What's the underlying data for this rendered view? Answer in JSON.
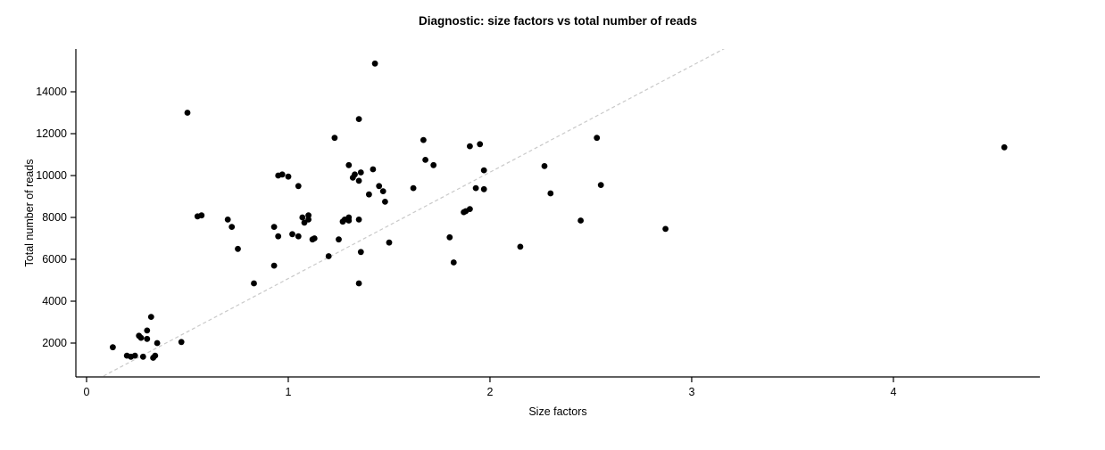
{
  "figure": {
    "background": "#ffffff"
  },
  "chart_data": {
    "type": "scatter",
    "title": "Diagnostic: size factors vs total number of reads",
    "xlabel": "Size factors",
    "ylabel": "Total number of reads",
    "xlim": [
      -0.053,
      4.726
    ],
    "ylim": [
      383,
      16043
    ],
    "x_ticks": [
      0,
      1,
      2,
      3,
      4
    ],
    "y_ticks": [
      2000,
      4000,
      6000,
      8000,
      10000,
      12000,
      14000
    ],
    "grid": false,
    "legend": "none",
    "point_color": "#000000",
    "point_radius": 3.4,
    "reference_line": {
      "intercept": 0,
      "slope": 5080,
      "style": "dashed",
      "color": "#c9c9c9"
    },
    "points": [
      [
        0.13,
        1800
      ],
      [
        0.2,
        1400
      ],
      [
        0.22,
        1350
      ],
      [
        0.24,
        1400
      ],
      [
        0.26,
        2350
      ],
      [
        0.27,
        2250
      ],
      [
        0.28,
        1350
      ],
      [
        0.3,
        2600
      ],
      [
        0.3,
        2200
      ],
      [
        0.32,
        3250
      ],
      [
        0.33,
        1300
      ],
      [
        0.34,
        1400
      ],
      [
        0.35,
        2000
      ],
      [
        0.47,
        2050
      ],
      [
        0.5,
        13000
      ],
      [
        0.55,
        8050
      ],
      [
        0.57,
        8100
      ],
      [
        0.7,
        7900
      ],
      [
        0.72,
        7550
      ],
      [
        0.75,
        6500
      ],
      [
        0.83,
        4850
      ],
      [
        0.93,
        7550
      ],
      [
        0.95,
        7100
      ],
      [
        0.93,
        5700
      ],
      [
        0.95,
        10000
      ],
      [
        0.97,
        10050
      ],
      [
        1.0,
        9950
      ],
      [
        1.02,
        7200
      ],
      [
        1.05,
        9500
      ],
      [
        1.05,
        7100
      ],
      [
        1.07,
        8000
      ],
      [
        1.08,
        7750
      ],
      [
        1.1,
        7900
      ],
      [
        1.1,
        8100
      ],
      [
        1.12,
        6950
      ],
      [
        1.13,
        7000
      ],
      [
        1.2,
        6150
      ],
      [
        1.23,
        11800
      ],
      [
        1.25,
        6950
      ],
      [
        1.27,
        7800
      ],
      [
        1.28,
        7900
      ],
      [
        1.3,
        8000
      ],
      [
        1.3,
        7850
      ],
      [
        1.3,
        10500
      ],
      [
        1.32,
        9900
      ],
      [
        1.33,
        10050
      ],
      [
        1.35,
        12700
      ],
      [
        1.35,
        9750
      ],
      [
        1.36,
        10150
      ],
      [
        1.35,
        7900
      ],
      [
        1.36,
        6350
      ],
      [
        1.35,
        4850
      ],
      [
        1.4,
        9100
      ],
      [
        1.43,
        15350
      ],
      [
        1.42,
        10300
      ],
      [
        1.45,
        9500
      ],
      [
        1.47,
        9250
      ],
      [
        1.48,
        8750
      ],
      [
        1.5,
        6800
      ],
      [
        1.62,
        9400
      ],
      [
        1.67,
        11700
      ],
      [
        1.68,
        10750
      ],
      [
        1.72,
        10500
      ],
      [
        1.8,
        7050
      ],
      [
        1.82,
        5850
      ],
      [
        1.87,
        8250
      ],
      [
        1.88,
        8300
      ],
      [
        1.9,
        8400
      ],
      [
        1.9,
        11400
      ],
      [
        1.95,
        11500
      ],
      [
        1.93,
        9400
      ],
      [
        1.97,
        9350
      ],
      [
        1.97,
        10250
      ],
      [
        2.15,
        6600
      ],
      [
        2.27,
        10450
      ],
      [
        2.3,
        9150
      ],
      [
        2.45,
        7850
      ],
      [
        2.53,
        11800
      ],
      [
        2.55,
        9550
      ],
      [
        2.87,
        7450
      ],
      [
        4.55,
        11350
      ]
    ]
  }
}
